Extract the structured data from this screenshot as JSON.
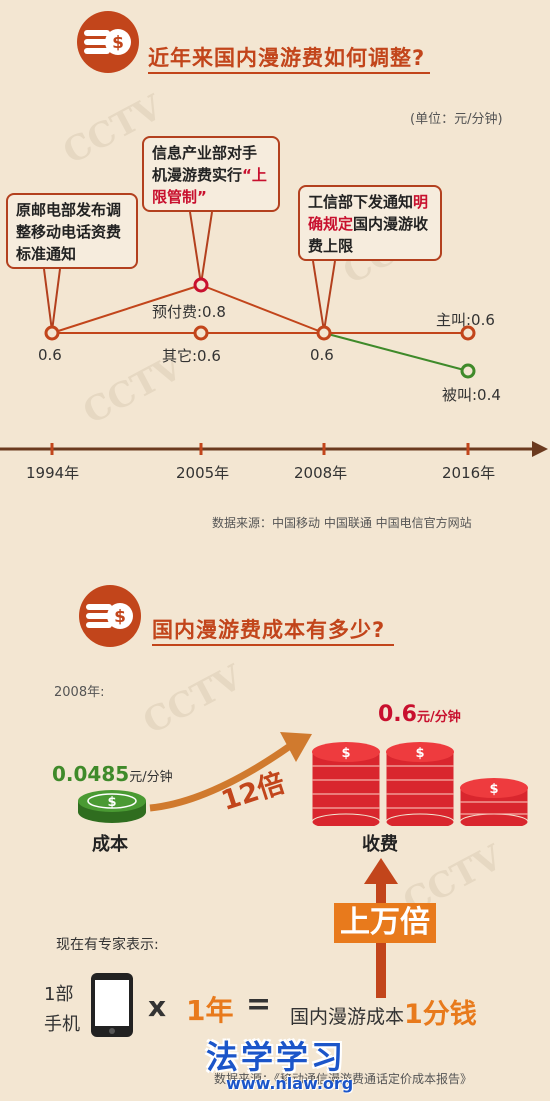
{
  "section1": {
    "title": "近年来国内漫游费如何调整?",
    "unit": "(单位：元/分钟)",
    "callouts": {
      "c1994": "原邮电部发布调整移动电话资费标准通知",
      "c2005_a": "信息产业部对手机漫游费实行",
      "c2005_b": "“上限管制”",
      "c2008_a": "工信部下发通知",
      "c2008_b": "明确规定",
      "c2008_c": "国内漫游收费上限"
    },
    "labels": {
      "v1994": "0.6",
      "prepaid": "预付费:0.8",
      "other": "其它:0.6",
      "v2008": "0.6",
      "caller": "主叫:0.6",
      "callee": "被叫:0.4"
    },
    "years": [
      "1994年",
      "2005年",
      "2008年",
      "2016年"
    ],
    "source": "数据来源：中国移动  中国联通  中国电信官方网站"
  },
  "section2": {
    "title": "国内漫游费成本有多少?",
    "year_label": "2008年:",
    "cost_value": "0.0485",
    "cost_unit": "元/分钟",
    "cost_label": "成本",
    "multiplier": "12倍",
    "fee_value": "0.6",
    "fee_unit": "元/分钟",
    "fee_label": "收费",
    "huge": "上万倍",
    "expert": "现在有专家表示:",
    "phone_text_1": "1部",
    "phone_text_2": "手机",
    "times": "x",
    "one_year": "1年",
    "equals": "=",
    "cost_text": "国内漫游成本",
    "one_fen": "1分钱",
    "source": "数据来源：《移动通信漫游费通话定价成本报告》",
    "logo": "法学学习",
    "logo_url": "www.nlaw.org"
  },
  "colors": {
    "accent": "#c2451b",
    "orange": "#e87a1c",
    "green": "#3f8a2a",
    "red": "#c8102e"
  }
}
